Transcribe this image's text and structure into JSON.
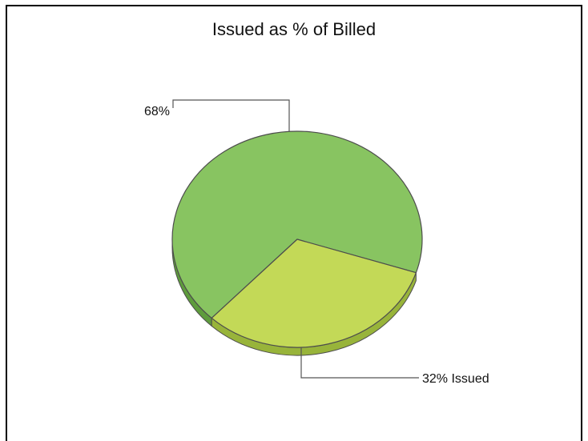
{
  "chart_data": {
    "type": "pie",
    "title": "Issued as % of Billed",
    "slices": [
      {
        "label": "",
        "value": 68,
        "display": "68%",
        "color": "#88c461",
        "side_color": "#5e9c3c"
      },
      {
        "label": "Issued",
        "value": 32,
        "display": "32% Issued",
        "color": "#c3d957",
        "side_color": "#98b43a"
      }
    ],
    "style": "3d"
  }
}
